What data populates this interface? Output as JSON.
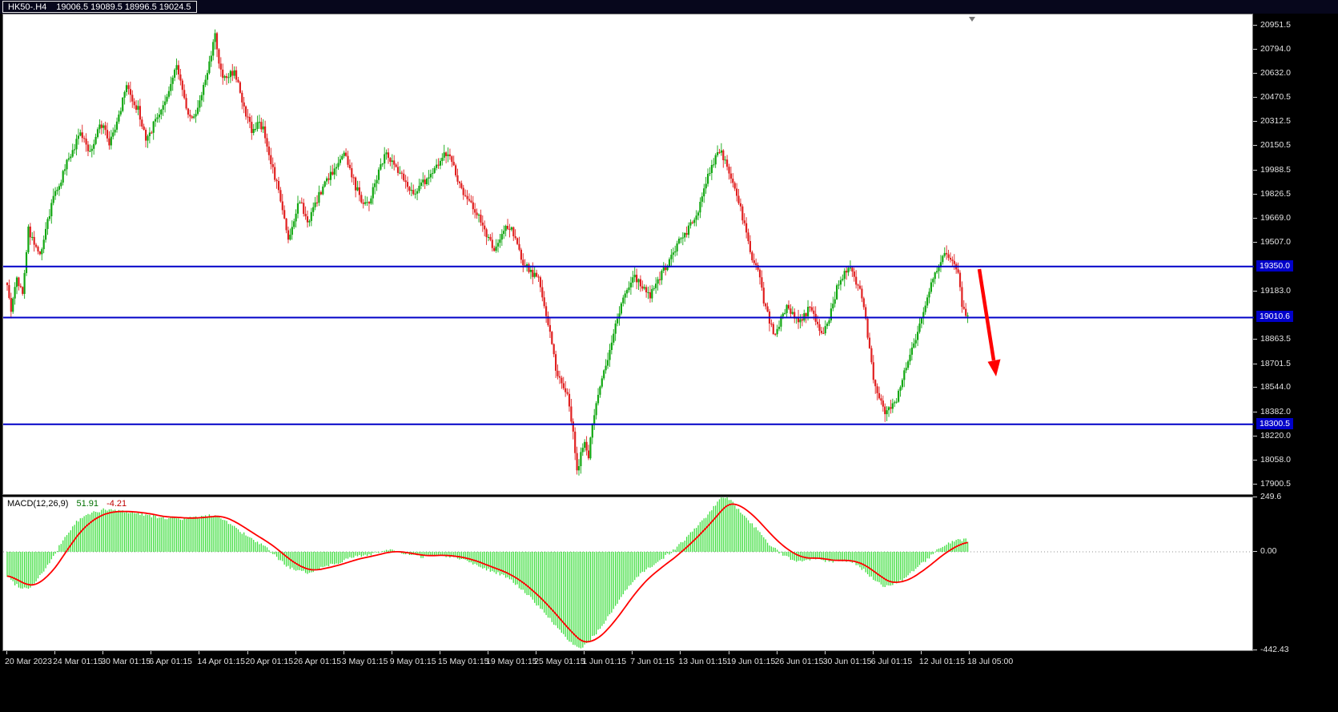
{
  "title": {
    "symbol_timeframe": "HK50-.H4",
    "ohlc": "19006.5 19089.5 18996.5 19024.5"
  },
  "chart_data": {
    "type": "candlestick",
    "symbol": "HK50-.H4",
    "timeframe": "H4",
    "bars_total": 500,
    "y_axis": {
      "min": 17900.5,
      "max": 20951.5,
      "ticks": [
        20951.5,
        20794.0,
        20632.0,
        20470.5,
        20312.5,
        20150.5,
        19988.5,
        19826.5,
        19669.0,
        19507.0,
        19183.0,
        18863.5,
        18701.5,
        18544.0,
        18382.0,
        18220.0,
        18058.0,
        17900.5
      ]
    },
    "x_axis": {
      "bars_per_label": 25,
      "labels": [
        "20 Mar 2023",
        "24 Mar 01:15",
        "30 Mar 01:15",
        "6 Apr 01:15",
        "14 Apr 01:15",
        "20 Apr 01:15",
        "26 Apr 01:15",
        "3 May 01:15",
        "9 May 01:15",
        "15 May 01:15",
        "19 May 01:15",
        "25 May 01:15",
        "1 Jun 01:15",
        "7 Jun 01:15",
        "13 Jun 01:15",
        "19 Jun 01:15",
        "26 Jun 01:15",
        "30 Jun 01:15",
        "6 Jul 01:15",
        "12 Jul 01:15",
        "18 Jul 05:00"
      ]
    },
    "horizontal_lines": [
      {
        "price": 19350.0,
        "label": "19350.0"
      },
      {
        "price": 19010.6,
        "label": "19010.6"
      },
      {
        "price": 18300.5,
        "label": "18300.5"
      }
    ],
    "annotation": {
      "shape": "arrow",
      "direction": "down-right",
      "color": "#FF0000"
    },
    "price_pivots": [
      [
        0,
        19250
      ],
      [
        2,
        19060
      ],
      [
        5,
        19280
      ],
      [
        8,
        19150
      ],
      [
        11,
        19600
      ],
      [
        14,
        19500
      ],
      [
        17,
        19420
      ],
      [
        20,
        19600
      ],
      [
        24,
        19800
      ],
      [
        28,
        19930
      ],
      [
        31,
        20050
      ],
      [
        35,
        20150
      ],
      [
        38,
        20250
      ],
      [
        42,
        20120
      ],
      [
        45,
        20160
      ],
      [
        48,
        20280
      ],
      [
        50,
        20300
      ],
      [
        53,
        20180
      ],
      [
        57,
        20300
      ],
      [
        62,
        20550
      ],
      [
        65,
        20430
      ],
      [
        68,
        20400
      ],
      [
        72,
        20180
      ],
      [
        75,
        20260
      ],
      [
        78,
        20350
      ],
      [
        81,
        20430
      ],
      [
        84,
        20520
      ],
      [
        88,
        20680
      ],
      [
        92,
        20450
      ],
      [
        96,
        20320
      ],
      [
        99,
        20420
      ],
      [
        102,
        20550
      ],
      [
        105,
        20700
      ],
      [
        108,
        20880
      ],
      [
        110,
        20720
      ],
      [
        112,
        20600
      ],
      [
        115,
        20620
      ],
      [
        118,
        20650
      ],
      [
        121,
        20520
      ],
      [
        124,
        20350
      ],
      [
        127,
        20260
      ],
      [
        130,
        20300
      ],
      [
        133,
        20280
      ],
      [
        136,
        20100
      ],
      [
        139,
        19950
      ],
      [
        142,
        19800
      ],
      [
        146,
        19530
      ],
      [
        149,
        19650
      ],
      [
        152,
        19800
      ],
      [
        154,
        19700
      ],
      [
        156,
        19620
      ],
      [
        159,
        19730
      ],
      [
        163,
        19850
      ],
      [
        166,
        19920
      ],
      [
        169,
        19980
      ],
      [
        172,
        20050
      ],
      [
        175,
        20120
      ],
      [
        178,
        19990
      ],
      [
        181,
        19880
      ],
      [
        184,
        19800
      ],
      [
        188,
        19760
      ],
      [
        191,
        19900
      ],
      [
        194,
        20020
      ],
      [
        197,
        20100
      ],
      [
        200,
        20040
      ],
      [
        203,
        19980
      ],
      [
        206,
        19930
      ],
      [
        209,
        19870
      ],
      [
        212,
        19850
      ],
      [
        215,
        19890
      ],
      [
        218,
        19930
      ],
      [
        221,
        19990
      ],
      [
        224,
        20040
      ],
      [
        227,
        20090
      ],
      [
        229,
        20120
      ],
      [
        232,
        20010
      ],
      [
        235,
        19880
      ],
      [
        238,
        19820
      ],
      [
        241,
        19760
      ],
      [
        244,
        19700
      ],
      [
        247,
        19620
      ],
      [
        250,
        19540
      ],
      [
        253,
        19470
      ],
      [
        256,
        19550
      ],
      [
        259,
        19600
      ],
      [
        261,
        19620
      ],
      [
        264,
        19520
      ],
      [
        267,
        19400
      ],
      [
        270,
        19340
      ],
      [
        273,
        19300
      ],
      [
        276,
        19260
      ],
      [
        279,
        19100
      ],
      [
        282,
        18900
      ],
      [
        285,
        18680
      ],
      [
        288,
        18560
      ],
      [
        291,
        18480
      ],
      [
        294,
        18230
      ],
      [
        296,
        17990
      ],
      [
        298,
        18100
      ],
      [
        300,
        18160
      ],
      [
        302,
        18080
      ],
      [
        304,
        18300
      ],
      [
        307,
        18500
      ],
      [
        310,
        18650
      ],
      [
        313,
        18800
      ],
      [
        316,
        18960
      ],
      [
        319,
        19090
      ],
      [
        322,
        19200
      ],
      [
        325,
        19290
      ],
      [
        328,
        19260
      ],
      [
        331,
        19190
      ],
      [
        334,
        19150
      ],
      [
        337,
        19230
      ],
      [
        340,
        19300
      ],
      [
        343,
        19360
      ],
      [
        346,
        19440
      ],
      [
        349,
        19510
      ],
      [
        352,
        19560
      ],
      [
        355,
        19630
      ],
      [
        358,
        19700
      ],
      [
        361,
        19800
      ],
      [
        364,
        19950
      ],
      [
        367,
        20050
      ],
      [
        370,
        20120
      ],
      [
        372,
        20080
      ],
      [
        375,
        19980
      ],
      [
        378,
        19860
      ],
      [
        381,
        19730
      ],
      [
        384,
        19580
      ],
      [
        387,
        19400
      ],
      [
        390,
        19350
      ],
      [
        393,
        19120
      ],
      [
        396,
        18980
      ],
      [
        399,
        18890
      ],
      [
        402,
        19000
      ],
      [
        405,
        19080
      ],
      [
        408,
        19050
      ],
      [
        411,
        18960
      ],
      [
        414,
        19020
      ],
      [
        417,
        19090
      ],
      [
        420,
        19000
      ],
      [
        423,
        18890
      ],
      [
        426,
        18960
      ],
      [
        429,
        19100
      ],
      [
        432,
        19250
      ],
      [
        435,
        19300
      ],
      [
        438,
        19330
      ],
      [
        441,
        19250
      ],
      [
        444,
        19150
      ],
      [
        447,
        18900
      ],
      [
        450,
        18600
      ],
      [
        453,
        18480
      ],
      [
        456,
        18370
      ],
      [
        459,
        18410
      ],
      [
        462,
        18470
      ],
      [
        465,
        18610
      ],
      [
        468,
        18720
      ],
      [
        471,
        18820
      ],
      [
        474,
        18950
      ],
      [
        477,
        19090
      ],
      [
        480,
        19230
      ],
      [
        483,
        19340
      ],
      [
        486,
        19430
      ],
      [
        489,
        19420
      ],
      [
        492,
        19380
      ],
      [
        494,
        19300
      ],
      [
        496,
        19100
      ],
      [
        498,
        19040
      ],
      [
        499,
        19024.5
      ]
    ],
    "macd": {
      "label": "MACD(12,26,9)",
      "macd_value": "51.91",
      "signal_value": "-4.21",
      "axis_max": "249.6",
      "axis_zero": "0.00",
      "axis_min": "-442.43",
      "pivots": [
        [
          0,
          -110
        ],
        [
          4,
          -145
        ],
        [
          8,
          -165
        ],
        [
          12,
          -160
        ],
        [
          16,
          -120
        ],
        [
          20,
          -75
        ],
        [
          24,
          -25
        ],
        [
          28,
          40
        ],
        [
          32,
          90
        ],
        [
          36,
          135
        ],
        [
          40,
          160
        ],
        [
          45,
          180
        ],
        [
          50,
          190
        ],
        [
          56,
          188
        ],
        [
          62,
          182
        ],
        [
          68,
          175
        ],
        [
          74,
          165
        ],
        [
          80,
          152
        ],
        [
          86,
          155
        ],
        [
          92,
          150
        ],
        [
          98,
          155
        ],
        [
          104,
          162
        ],
        [
          108,
          165
        ],
        [
          112,
          150
        ],
        [
          116,
          125
        ],
        [
          120,
          100
        ],
        [
          124,
          75
        ],
        [
          128,
          52
        ],
        [
          132,
          32
        ],
        [
          136,
          8
        ],
        [
          140,
          -25
        ],
        [
          144,
          -55
        ],
        [
          148,
          -78
        ],
        [
          152,
          -90
        ],
        [
          156,
          -95
        ],
        [
          160,
          -82
        ],
        [
          164,
          -68
        ],
        [
          168,
          -58
        ],
        [
          172,
          -48
        ],
        [
          176,
          -35
        ],
        [
          180,
          -24
        ],
        [
          184,
          -18
        ],
        [
          188,
          -12
        ],
        [
          192,
          -4
        ],
        [
          196,
          6
        ],
        [
          200,
          6
        ],
        [
          204,
          -2
        ],
        [
          208,
          -12
        ],
        [
          212,
          -18
        ],
        [
          216,
          -22
        ],
        [
          220,
          -18
        ],
        [
          224,
          -14
        ],
        [
          228,
          -18
        ],
        [
          232,
          -24
        ],
        [
          236,
          -32
        ],
        [
          240,
          -45
        ],
        [
          244,
          -58
        ],
        [
          248,
          -75
        ],
        [
          252,
          -88
        ],
        [
          256,
          -100
        ],
        [
          260,
          -120
        ],
        [
          264,
          -145
        ],
        [
          268,
          -175
        ],
        [
          272,
          -210
        ],
        [
          276,
          -245
        ],
        [
          280,
          -285
        ],
        [
          284,
          -325
        ],
        [
          288,
          -370
        ],
        [
          292,
          -405
        ],
        [
          295,
          -428
        ],
        [
          297,
          -438
        ],
        [
          299,
          -428
        ],
        [
          302,
          -405
        ],
        [
          305,
          -378
        ],
        [
          308,
          -348
        ],
        [
          311,
          -310
        ],
        [
          314,
          -272
        ],
        [
          317,
          -235
        ],
        [
          320,
          -195
        ],
        [
          323,
          -158
        ],
        [
          326,
          -128
        ],
        [
          329,
          -102
        ],
        [
          332,
          -80
        ],
        [
          335,
          -62
        ],
        [
          338,
          -45
        ],
        [
          341,
          -25
        ],
        [
          344,
          -8
        ],
        [
          347,
          15
        ],
        [
          350,
          40
        ],
        [
          353,
          65
        ],
        [
          356,
          92
        ],
        [
          359,
          120
        ],
        [
          362,
          150
        ],
        [
          365,
          180
        ],
        [
          368,
          212
        ],
        [
          371,
          242
        ],
        [
          373,
          248
        ],
        [
          375,
          238
        ],
        [
          377,
          220
        ],
        [
          380,
          192
        ],
        [
          383,
          165
        ],
        [
          386,
          135
        ],
        [
          389,
          105
        ],
        [
          392,
          72
        ],
        [
          395,
          42
        ],
        [
          398,
          18
        ],
        [
          401,
          -2
        ],
        [
          404,
          -18
        ],
        [
          407,
          -30
        ],
        [
          410,
          -38
        ],
        [
          413,
          -40
        ],
        [
          416,
          -34
        ],
        [
          419,
          -28
        ],
        [
          422,
          -32
        ],
        [
          425,
          -40
        ],
        [
          428,
          -45
        ],
        [
          431,
          -40
        ],
        [
          434,
          -38
        ],
        [
          437,
          -42
        ],
        [
          440,
          -52
        ],
        [
          443,
          -68
        ],
        [
          446,
          -90
        ],
        [
          449,
          -115
        ],
        [
          452,
          -135
        ],
        [
          455,
          -152
        ],
        [
          457,
          -158
        ],
        [
          459,
          -152
        ],
        [
          462,
          -138
        ],
        [
          465,
          -125
        ],
        [
          468,
          -108
        ],
        [
          471,
          -85
        ],
        [
          474,
          -62
        ],
        [
          477,
          -42
        ],
        [
          480,
          -18
        ],
        [
          483,
          5
        ],
        [
          486,
          22
        ],
        [
          489,
          36
        ],
        [
          492,
          48
        ],
        [
          495,
          54
        ],
        [
          497,
          55
        ],
        [
          499,
          52
        ]
      ]
    },
    "colors": {
      "bull": "#12A712",
      "bear": "#E02020",
      "hline": "#0000C8",
      "macd_histogram": "#3FDE3F",
      "macd_signal": "#FF0000",
      "arrow": "#FF0000",
      "background": "#FFFFFF",
      "frame": "#000000"
    }
  }
}
